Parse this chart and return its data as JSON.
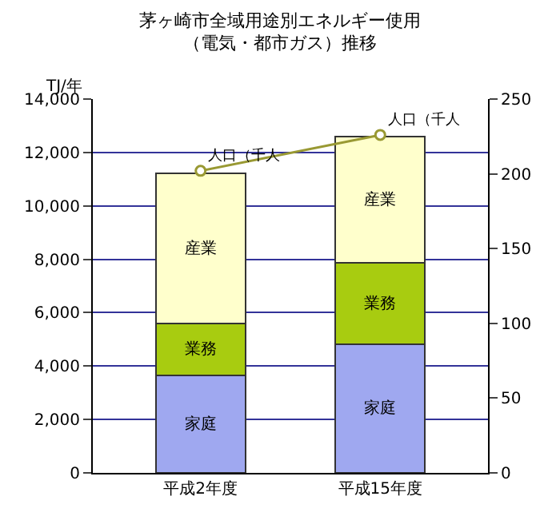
{
  "chart_data": {
    "type": "bar",
    "stacked": true,
    "title": "茅ヶ崎市全域用途別エネルギー使用",
    "subtitle": "（電気・都市ガス）推移",
    "ylabel": "TJ/年",
    "categories": [
      "平成2年度",
      "平成15年度"
    ],
    "series": [
      {
        "name": "家庭",
        "color": "#9fa8f0",
        "values": [
          3650,
          4820
        ]
      },
      {
        "name": "業務",
        "color": "#a8cc10",
        "values": [
          1950,
          3050
        ]
      },
      {
        "name": "産業",
        "color": "#ffffcc",
        "values": [
          5630,
          4720
        ]
      },
      {
        "name": "人口（千人",
        "type": "line",
        "axis": "y2",
        "color": "#999933",
        "marker": "circle",
        "values": [
          202,
          226
        ]
      }
    ],
    "ylim": [
      0,
      14000
    ],
    "yticks": [
      {
        "value": 0,
        "label": "0"
      },
      {
        "value": 2000,
        "label": "2,000"
      },
      {
        "value": 4000,
        "label": "4,000"
      },
      {
        "value": 6000,
        "label": "6,000"
      },
      {
        "value": 8000,
        "label": "8,000"
      },
      {
        "value": 10000,
        "label": "10,000"
      },
      {
        "value": 12000,
        "label": "12,000"
      },
      {
        "value": 14000,
        "label": "14,000"
      }
    ],
    "y2lim": [
      0,
      250
    ],
    "y2ticks": [
      0,
      50,
      100,
      150,
      200,
      250
    ],
    "grid": "y",
    "legend": false
  }
}
